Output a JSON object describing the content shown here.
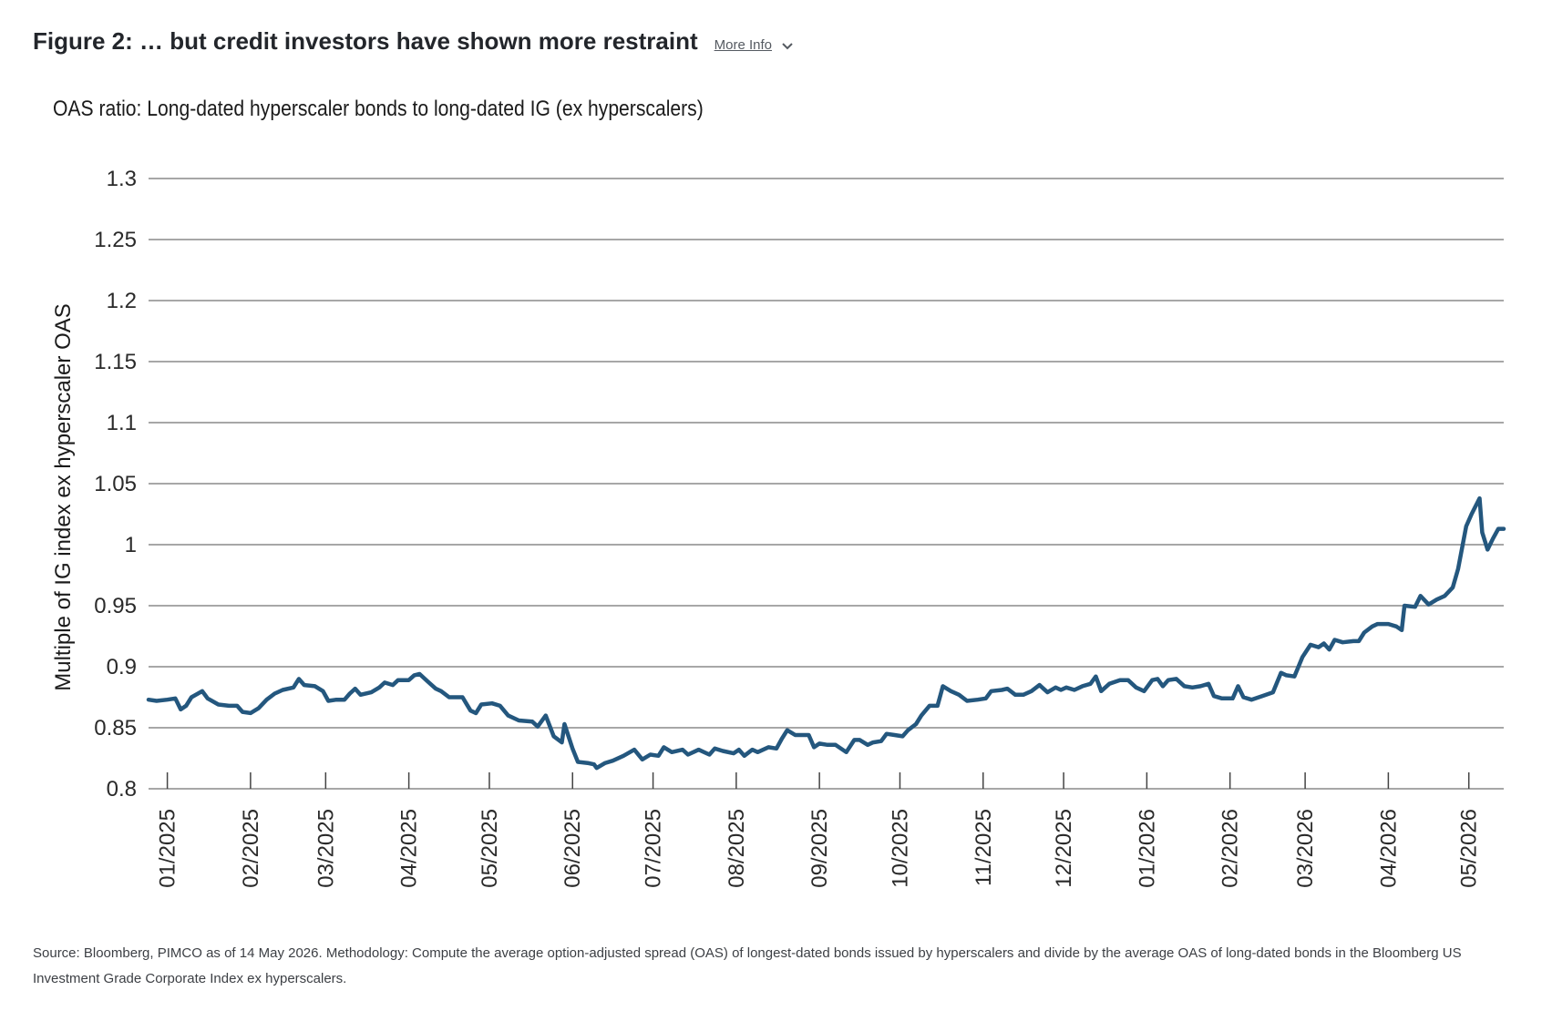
{
  "figure": {
    "title": "Figure 2: … but credit investors have shown more restraint",
    "more_info_label": "More Info"
  },
  "source_note": "Source: Bloomberg, PIMCO as of 14 May 2026. Methodology: Compute the average option-adjusted spread (OAS) of longest-dated bonds issued by hyperscalers and divide by the average OAS of long-dated bonds in the Bloomberg US Investment Grade Corporate Index ex hyperscalers.",
  "colors": {
    "line": "#24577e",
    "grid": "#8a8a8a",
    "axis": "#444444"
  },
  "chart_data": {
    "type": "line",
    "title": "OAS ratio: Long-dated hyperscaler bonds to long-dated IG (ex hyperscalers)",
    "xlabel": "",
    "ylabel": "Multiple of IG index ex hyperscaler OAS",
    "ylim": [
      0.8,
      1.3
    ],
    "yticks": [
      0.8,
      0.85,
      0.9,
      0.95,
      1,
      1.05,
      1.1,
      1.15,
      1.2,
      1.25,
      1.3
    ],
    "ytick_labels": [
      "0.8",
      "0.85",
      "0.9",
      "0.95",
      "1",
      "1.05",
      "1.1",
      "1.15",
      "1.2",
      "1.25",
      "1.3"
    ],
    "xtick_labels": [
      "01/2025",
      "02/2025",
      "03/2025",
      "04/2025",
      "05/2025",
      "06/2025",
      "07/2025",
      "08/2025",
      "09/2025",
      "10/2025",
      "11/2025",
      "12/2025",
      "01/2026",
      "02/2026",
      "03/2026",
      "04/2026",
      "05/2026"
    ],
    "grid": true,
    "x_range": [
      "2024-12-25",
      "2026-05-14"
    ],
    "series": [
      {
        "name": "",
        "points": [
          [
            "2024-12-25",
            0.873
          ],
          [
            "2024-12-28",
            0.872
          ],
          [
            "2025-01-01",
            0.873
          ],
          [
            "2025-01-04",
            0.874
          ],
          [
            "2025-01-06",
            0.865
          ],
          [
            "2025-01-08",
            0.868
          ],
          [
            "2025-01-10",
            0.875
          ],
          [
            "2025-01-14",
            0.88
          ],
          [
            "2025-01-16",
            0.874
          ],
          [
            "2025-01-20",
            0.869
          ],
          [
            "2025-01-24",
            0.868
          ],
          [
            "2025-01-27",
            0.868
          ],
          [
            "2025-01-29",
            0.863
          ],
          [
            "2025-02-01",
            0.862
          ],
          [
            "2025-02-04",
            0.866
          ],
          [
            "2025-02-07",
            0.873
          ],
          [
            "2025-02-10",
            0.878
          ],
          [
            "2025-02-13",
            0.881
          ],
          [
            "2025-02-17",
            0.883
          ],
          [
            "2025-02-19",
            0.89
          ],
          [
            "2025-02-21",
            0.885
          ],
          [
            "2025-02-25",
            0.884
          ],
          [
            "2025-02-28",
            0.88
          ],
          [
            "2025-03-02",
            0.872
          ],
          [
            "2025-03-05",
            0.873
          ],
          [
            "2025-03-08",
            0.873
          ],
          [
            "2025-03-10",
            0.878
          ],
          [
            "2025-03-12",
            0.882
          ],
          [
            "2025-03-14",
            0.877
          ],
          [
            "2025-03-18",
            0.879
          ],
          [
            "2025-03-21",
            0.883
          ],
          [
            "2025-03-23",
            0.887
          ],
          [
            "2025-03-26",
            0.885
          ],
          [
            "2025-03-28",
            0.889
          ],
          [
            "2025-04-01",
            0.889
          ],
          [
            "2025-04-03",
            0.893
          ],
          [
            "2025-04-05",
            0.894
          ],
          [
            "2025-04-08",
            0.888
          ],
          [
            "2025-04-11",
            0.882
          ],
          [
            "2025-04-13",
            0.88
          ],
          [
            "2025-04-16",
            0.875
          ],
          [
            "2025-04-21",
            0.875
          ],
          [
            "2025-04-24",
            0.864
          ],
          [
            "2025-04-26",
            0.862
          ],
          [
            "2025-04-28",
            0.869
          ],
          [
            "2025-05-02",
            0.87
          ],
          [
            "2025-05-05",
            0.868
          ],
          [
            "2025-05-08",
            0.86
          ],
          [
            "2025-05-12",
            0.856
          ],
          [
            "2025-05-17",
            0.855
          ],
          [
            "2025-05-19",
            0.851
          ],
          [
            "2025-05-22",
            0.86
          ],
          [
            "2025-05-25",
            0.843
          ],
          [
            "2025-05-28",
            0.838
          ],
          [
            "2025-05-29",
            0.853
          ],
          [
            "2025-06-01",
            0.833
          ],
          [
            "2025-06-03",
            0.822
          ],
          [
            "2025-06-07",
            0.821
          ],
          [
            "2025-06-09",
            0.82
          ],
          [
            "2025-06-10",
            0.817
          ],
          [
            "2025-06-13",
            0.821
          ],
          [
            "2025-06-16",
            0.823
          ],
          [
            "2025-06-20",
            0.827
          ],
          [
            "2025-06-24",
            0.832
          ],
          [
            "2025-06-27",
            0.824
          ],
          [
            "2025-06-30",
            0.828
          ],
          [
            "2025-07-03",
            0.827
          ],
          [
            "2025-07-05",
            0.834
          ],
          [
            "2025-07-08",
            0.83
          ],
          [
            "2025-07-12",
            0.832
          ],
          [
            "2025-07-14",
            0.828
          ],
          [
            "2025-07-18",
            0.832
          ],
          [
            "2025-07-22",
            0.828
          ],
          [
            "2025-07-24",
            0.833
          ],
          [
            "2025-07-27",
            0.831
          ],
          [
            "2025-07-31",
            0.829
          ],
          [
            "2025-08-02",
            0.832
          ],
          [
            "2025-08-04",
            0.827
          ],
          [
            "2025-08-07",
            0.832
          ],
          [
            "2025-08-09",
            0.83
          ],
          [
            "2025-08-13",
            0.834
          ],
          [
            "2025-08-16",
            0.833
          ],
          [
            "2025-08-18",
            0.841
          ],
          [
            "2025-08-20",
            0.848
          ],
          [
            "2025-08-23",
            0.844
          ],
          [
            "2025-08-28",
            0.844
          ],
          [
            "2025-08-30",
            0.834
          ],
          [
            "2025-09-01",
            0.837
          ],
          [
            "2025-09-04",
            0.836
          ],
          [
            "2025-09-07",
            0.836
          ],
          [
            "2025-09-09",
            0.833
          ],
          [
            "2025-09-11",
            0.83
          ],
          [
            "2025-09-14",
            0.84
          ],
          [
            "2025-09-16",
            0.84
          ],
          [
            "2025-09-19",
            0.836
          ],
          [
            "2025-09-21",
            0.838
          ],
          [
            "2025-09-24",
            0.839
          ],
          [
            "2025-09-26",
            0.845
          ],
          [
            "2025-09-29",
            0.844
          ],
          [
            "2025-10-02",
            0.843
          ],
          [
            "2025-10-04",
            0.848
          ],
          [
            "2025-10-07",
            0.853
          ],
          [
            "2025-10-09",
            0.86
          ],
          [
            "2025-10-12",
            0.868
          ],
          [
            "2025-10-15",
            0.868
          ],
          [
            "2025-10-17",
            0.884
          ],
          [
            "2025-10-20",
            0.88
          ],
          [
            "2025-10-23",
            0.877
          ],
          [
            "2025-10-26",
            0.872
          ],
          [
            "2025-10-30",
            0.873
          ],
          [
            "2025-11-02",
            0.874
          ],
          [
            "2025-11-04",
            0.88
          ],
          [
            "2025-11-08",
            0.881
          ],
          [
            "2025-11-10",
            0.882
          ],
          [
            "2025-11-13",
            0.877
          ],
          [
            "2025-11-16",
            0.877
          ],
          [
            "2025-11-19",
            0.88
          ],
          [
            "2025-11-22",
            0.885
          ],
          [
            "2025-11-25",
            0.879
          ],
          [
            "2025-11-28",
            0.883
          ],
          [
            "2025-11-30",
            0.881
          ],
          [
            "2025-12-02",
            0.883
          ],
          [
            "2025-12-05",
            0.881
          ],
          [
            "2025-12-08",
            0.884
          ],
          [
            "2025-12-11",
            0.886
          ],
          [
            "2025-12-13",
            0.892
          ],
          [
            "2025-12-15",
            0.88
          ],
          [
            "2025-12-18",
            0.886
          ],
          [
            "2025-12-22",
            0.889
          ],
          [
            "2025-12-25",
            0.889
          ],
          [
            "2025-12-28",
            0.883
          ],
          [
            "2025-12-31",
            0.88
          ],
          [
            "2026-01-03",
            0.889
          ],
          [
            "2026-01-05",
            0.89
          ],
          [
            "2026-01-07",
            0.884
          ],
          [
            "2026-01-09",
            0.889
          ],
          [
            "2026-01-12",
            0.89
          ],
          [
            "2026-01-15",
            0.884
          ],
          [
            "2026-01-18",
            0.883
          ],
          [
            "2026-01-21",
            0.884
          ],
          [
            "2026-01-24",
            0.886
          ],
          [
            "2026-01-26",
            0.876
          ],
          [
            "2026-01-29",
            0.874
          ],
          [
            "2026-02-02",
            0.874
          ],
          [
            "2026-02-04",
            0.884
          ],
          [
            "2026-02-06",
            0.875
          ],
          [
            "2026-02-09",
            0.873
          ],
          [
            "2026-02-13",
            0.876
          ],
          [
            "2026-02-17",
            0.879
          ],
          [
            "2026-02-20",
            0.895
          ],
          [
            "2026-02-22",
            0.893
          ],
          [
            "2026-02-25",
            0.892
          ],
          [
            "2026-02-28",
            0.908
          ],
          [
            "2026-03-03",
            0.918
          ],
          [
            "2026-03-06",
            0.916
          ],
          [
            "2026-03-08",
            0.919
          ],
          [
            "2026-03-10",
            0.914
          ],
          [
            "2026-03-12",
            0.922
          ],
          [
            "2026-03-15",
            0.92
          ],
          [
            "2026-03-19",
            0.921
          ],
          [
            "2026-03-21",
            0.921
          ],
          [
            "2026-03-23",
            0.928
          ],
          [
            "2026-03-26",
            0.933
          ],
          [
            "2026-03-28",
            0.935
          ],
          [
            "2026-04-01",
            0.935
          ],
          [
            "2026-04-04",
            0.933
          ],
          [
            "2026-04-06",
            0.93
          ],
          [
            "2026-04-07",
            0.95
          ],
          [
            "2026-04-11",
            0.949
          ],
          [
            "2026-04-13",
            0.958
          ],
          [
            "2026-04-16",
            0.951
          ],
          [
            "2026-04-19",
            0.955
          ],
          [
            "2026-04-22",
            0.958
          ],
          [
            "2026-04-25",
            0.965
          ],
          [
            "2026-04-27",
            0.98
          ],
          [
            "2026-04-30",
            1.015
          ],
          [
            "2026-05-02",
            1.025
          ],
          [
            "2026-05-05",
            1.038
          ],
          [
            "2026-05-06",
            1.01
          ],
          [
            "2026-05-08",
            0.996
          ],
          [
            "2026-05-10",
            1.005
          ],
          [
            "2026-05-12",
            1.013
          ],
          [
            "2026-05-14",
            1.013
          ]
        ]
      }
    ]
  }
}
